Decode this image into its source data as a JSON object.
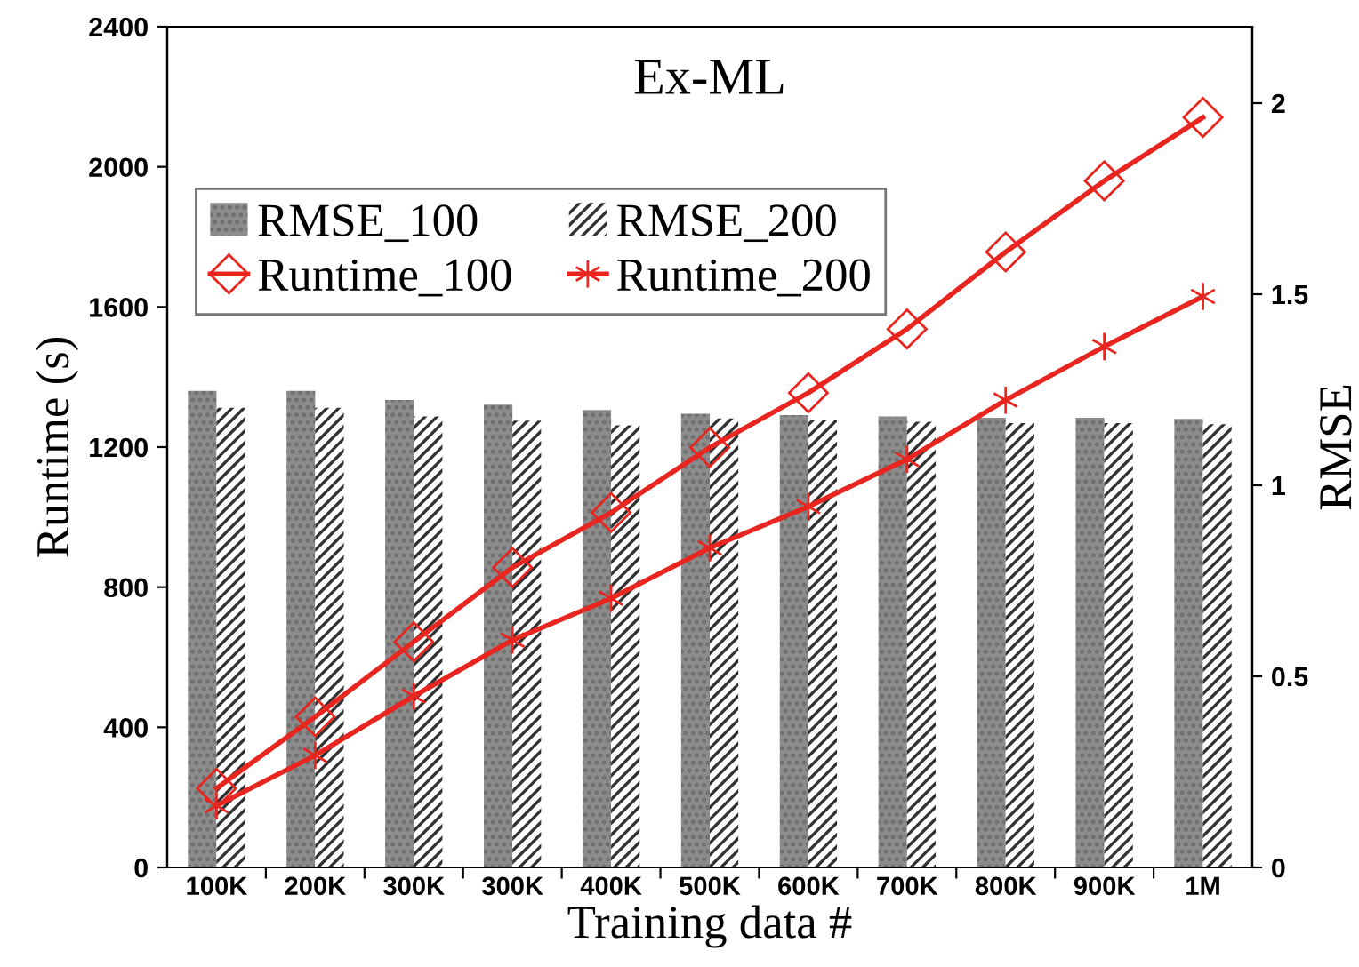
{
  "chart_data": {
    "type": "bar",
    "title": "Ex-ML",
    "xlabel": "Training data #",
    "ylabel": "Runtime (s)",
    "y2label": "RMSE",
    "categories": [
      "100K",
      "200K",
      "300K",
      "300K",
      "400K",
      "500K",
      "600K",
      "700K",
      "800K",
      "900K",
      "1M"
    ],
    "series": [
      {
        "name": "RMSE_100",
        "axis": "y2",
        "color": "#8c8c8c",
        "values": [
          1.247,
          1.247,
          1.223,
          1.211,
          1.197,
          1.187,
          1.184,
          1.18,
          1.177,
          1.177,
          1.174
        ]
      },
      {
        "name": "RMSE_200",
        "axis": "y2",
        "color": "#303030",
        "values": [
          1.203,
          1.203,
          1.18,
          1.169,
          1.157,
          1.175,
          1.172,
          1.166,
          1.163,
          1.163,
          1.16
        ]
      },
      {
        "name": "Runtime_100",
        "type": "line",
        "color": "#e8251f",
        "marker": "diamond",
        "values": [
          226,
          430,
          644,
          856,
          1013,
          1199,
          1355,
          1537,
          1757,
          1960,
          2141
        ]
      },
      {
        "name": "Runtime_200",
        "type": "line",
        "color": "#e8251f",
        "marker": "cross",
        "values": [
          176,
          320,
          489,
          649,
          768,
          912,
          1030,
          1165,
          1334,
          1487,
          1630
        ]
      }
    ],
    "ylim": [
      0,
      2400
    ],
    "yticks": [
      0,
      400,
      800,
      1200,
      1600,
      2000,
      2400
    ],
    "y2lim": [
      0,
      2.2
    ],
    "y2ticks": [
      0,
      0.5,
      1,
      1.5,
      2
    ],
    "legend": "top left",
    "grid": false,
    "line_style": "solid"
  }
}
